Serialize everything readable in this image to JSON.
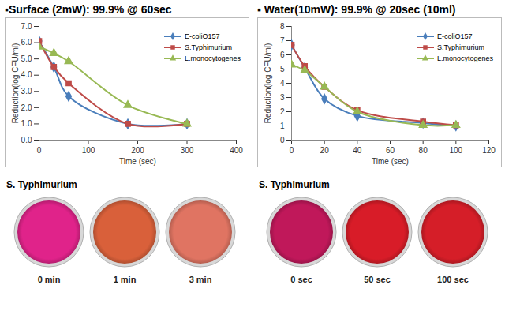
{
  "chart_data": [
    {
      "type": "line",
      "title": "▪Surface (2mW): 99.9% @ 60sec",
      "x_label": "Time (sec)",
      "y_label": "Reduction(log CFU/ml)",
      "x": [
        0,
        30,
        60,
        180,
        300
      ],
      "series": [
        {
          "name": "E-coliO157",
          "color": "#4a7ebb",
          "marker": "diamond",
          "values": [
            6.1,
            4.5,
            2.7,
            1.0,
            1.0
          ]
        },
        {
          "name": "S.Typhimurium",
          "color": "#be4b48",
          "marker": "square",
          "values": [
            6.1,
            4.5,
            3.5,
            1.0,
            1.0
          ]
        },
        {
          "name": "L.monocytogenes",
          "color": "#98b954",
          "marker": "triangle",
          "values": [
            5.75,
            5.35,
            4.85,
            2.15,
            1.0
          ]
        }
      ],
      "xlim": [
        0,
        400
      ],
      "xticks": [
        0,
        100,
        200,
        300,
        400
      ],
      "ylim": [
        0,
        7
      ],
      "yticks": [
        0,
        1,
        2,
        3,
        4,
        5,
        6,
        7
      ],
      "grid": false,
      "legend": "top-right"
    },
    {
      "type": "line",
      "title": "▪ Water(10mW): 99.9% @ 20sec (10ml)",
      "x_label": "Time (sec)",
      "y_label": "Reduction(log CFU/ml)",
      "x": [
        0,
        8,
        20,
        40,
        80,
        100
      ],
      "series": [
        {
          "name": "E-coliO157",
          "color": "#4a7ebb",
          "marker": "diamond",
          "values": [
            6.7,
            5.1,
            2.9,
            1.7,
            1.2,
            1.0
          ]
        },
        {
          "name": "S.Typhimurium",
          "color": "#be4b48",
          "marker": "square",
          "values": [
            6.7,
            5.2,
            3.75,
            2.1,
            1.3,
            1.05
          ]
        },
        {
          "name": "L.monocytogenes",
          "color": "#98b954",
          "marker": "triangle",
          "values": [
            5.3,
            4.9,
            3.75,
            2.0,
            1.05,
            1.05
          ]
        }
      ],
      "xlim": [
        0,
        120
      ],
      "xticks": [
        0,
        20,
        40,
        60,
        80,
        100,
        120
      ],
      "ylim": [
        0,
        8
      ],
      "yticks": [
        0,
        1,
        2,
        3,
        4,
        5,
        6,
        7,
        8
      ],
      "grid": false,
      "legend": "top-right"
    }
  ],
  "photos": [
    {
      "title": "S. Typhimurium",
      "labels": [
        "0 min",
        "1 min",
        "3 min"
      ],
      "colors": [
        "#e0238a",
        "#d9603a",
        "#e07462"
      ]
    },
    {
      "title": "S. Typhimurium",
      "labels": [
        "0 sec",
        "50 sec",
        "100 sec"
      ],
      "colors": [
        "#c0185a",
        "#d81c28",
        "#d51e28"
      ]
    }
  ]
}
